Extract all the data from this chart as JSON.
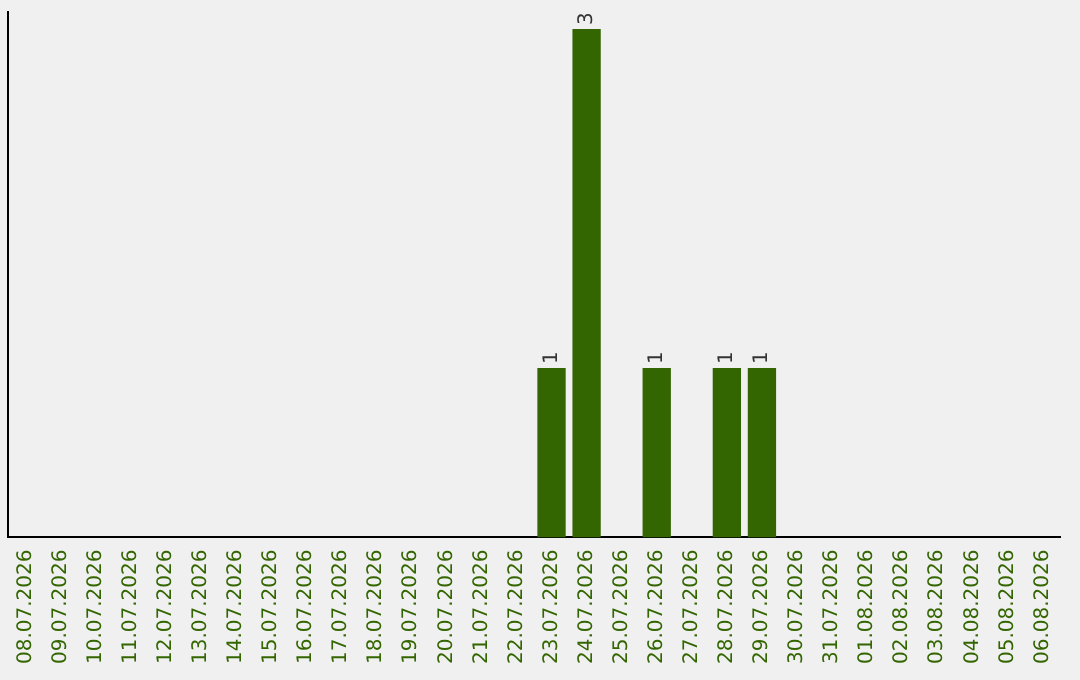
{
  "chart_data": {
    "type": "bar",
    "categories": [
      "08.07.2026",
      "09.07.2026",
      "10.07.2026",
      "11.07.2026",
      "12.07.2026",
      "13.07.2026",
      "14.07.2026",
      "15.07.2026",
      "16.07.2026",
      "17.07.2026",
      "18.07.2026",
      "19.07.2026",
      "20.07.2026",
      "21.07.2026",
      "22.07.2026",
      "23.07.2026",
      "24.07.2026",
      "25.07.2026",
      "26.07.2026",
      "27.07.2026",
      "28.07.2026",
      "29.07.2026",
      "30.07.2026",
      "31.07.2026",
      "01.08.2026",
      "02.08.2026",
      "03.08.2026",
      "04.08.2026",
      "05.08.2026",
      "06.08.2026"
    ],
    "values": [
      null,
      null,
      null,
      null,
      null,
      null,
      null,
      null,
      null,
      null,
      null,
      null,
      null,
      null,
      null,
      1,
      3,
      null,
      1,
      null,
      1,
      1,
      null,
      null,
      null,
      null,
      null,
      null,
      null,
      null
    ],
    "color": "#336600",
    "ylim": [
      0,
      3.1
    ],
    "data_labels": true,
    "grid": false,
    "legend": false,
    "tick_labels": "x"
  }
}
